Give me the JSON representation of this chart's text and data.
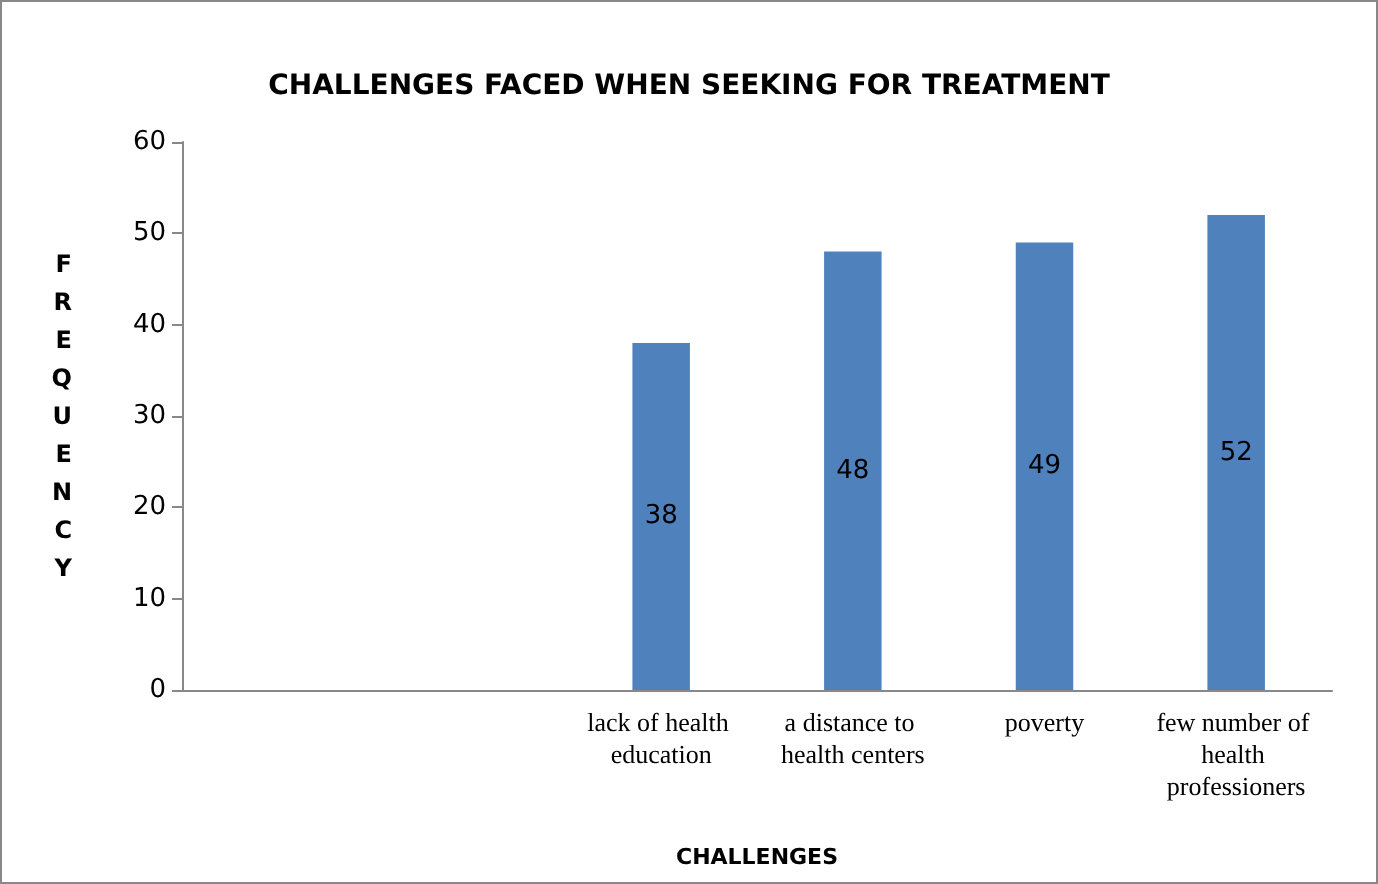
{
  "chart_data": {
    "type": "bar",
    "title": "CHALLENGES FACED WHEN SEEKING FOR TREATMENT",
    "xlabel": "CHALLENGES",
    "ylabel": "FREQUENCY",
    "categories": [
      null,
      null,
      "lack of health education",
      "a distance to health centers",
      "poverty",
      "few number of health professioners"
    ],
    "values": [
      null,
      null,
      38,
      48,
      49,
      52
    ],
    "color": "#4f81bd",
    "ylim": [
      0,
      60
    ],
    "yticks": [
      0,
      10,
      20,
      30,
      40,
      50,
      60
    ],
    "grid": false,
    "data_labels": true
  }
}
